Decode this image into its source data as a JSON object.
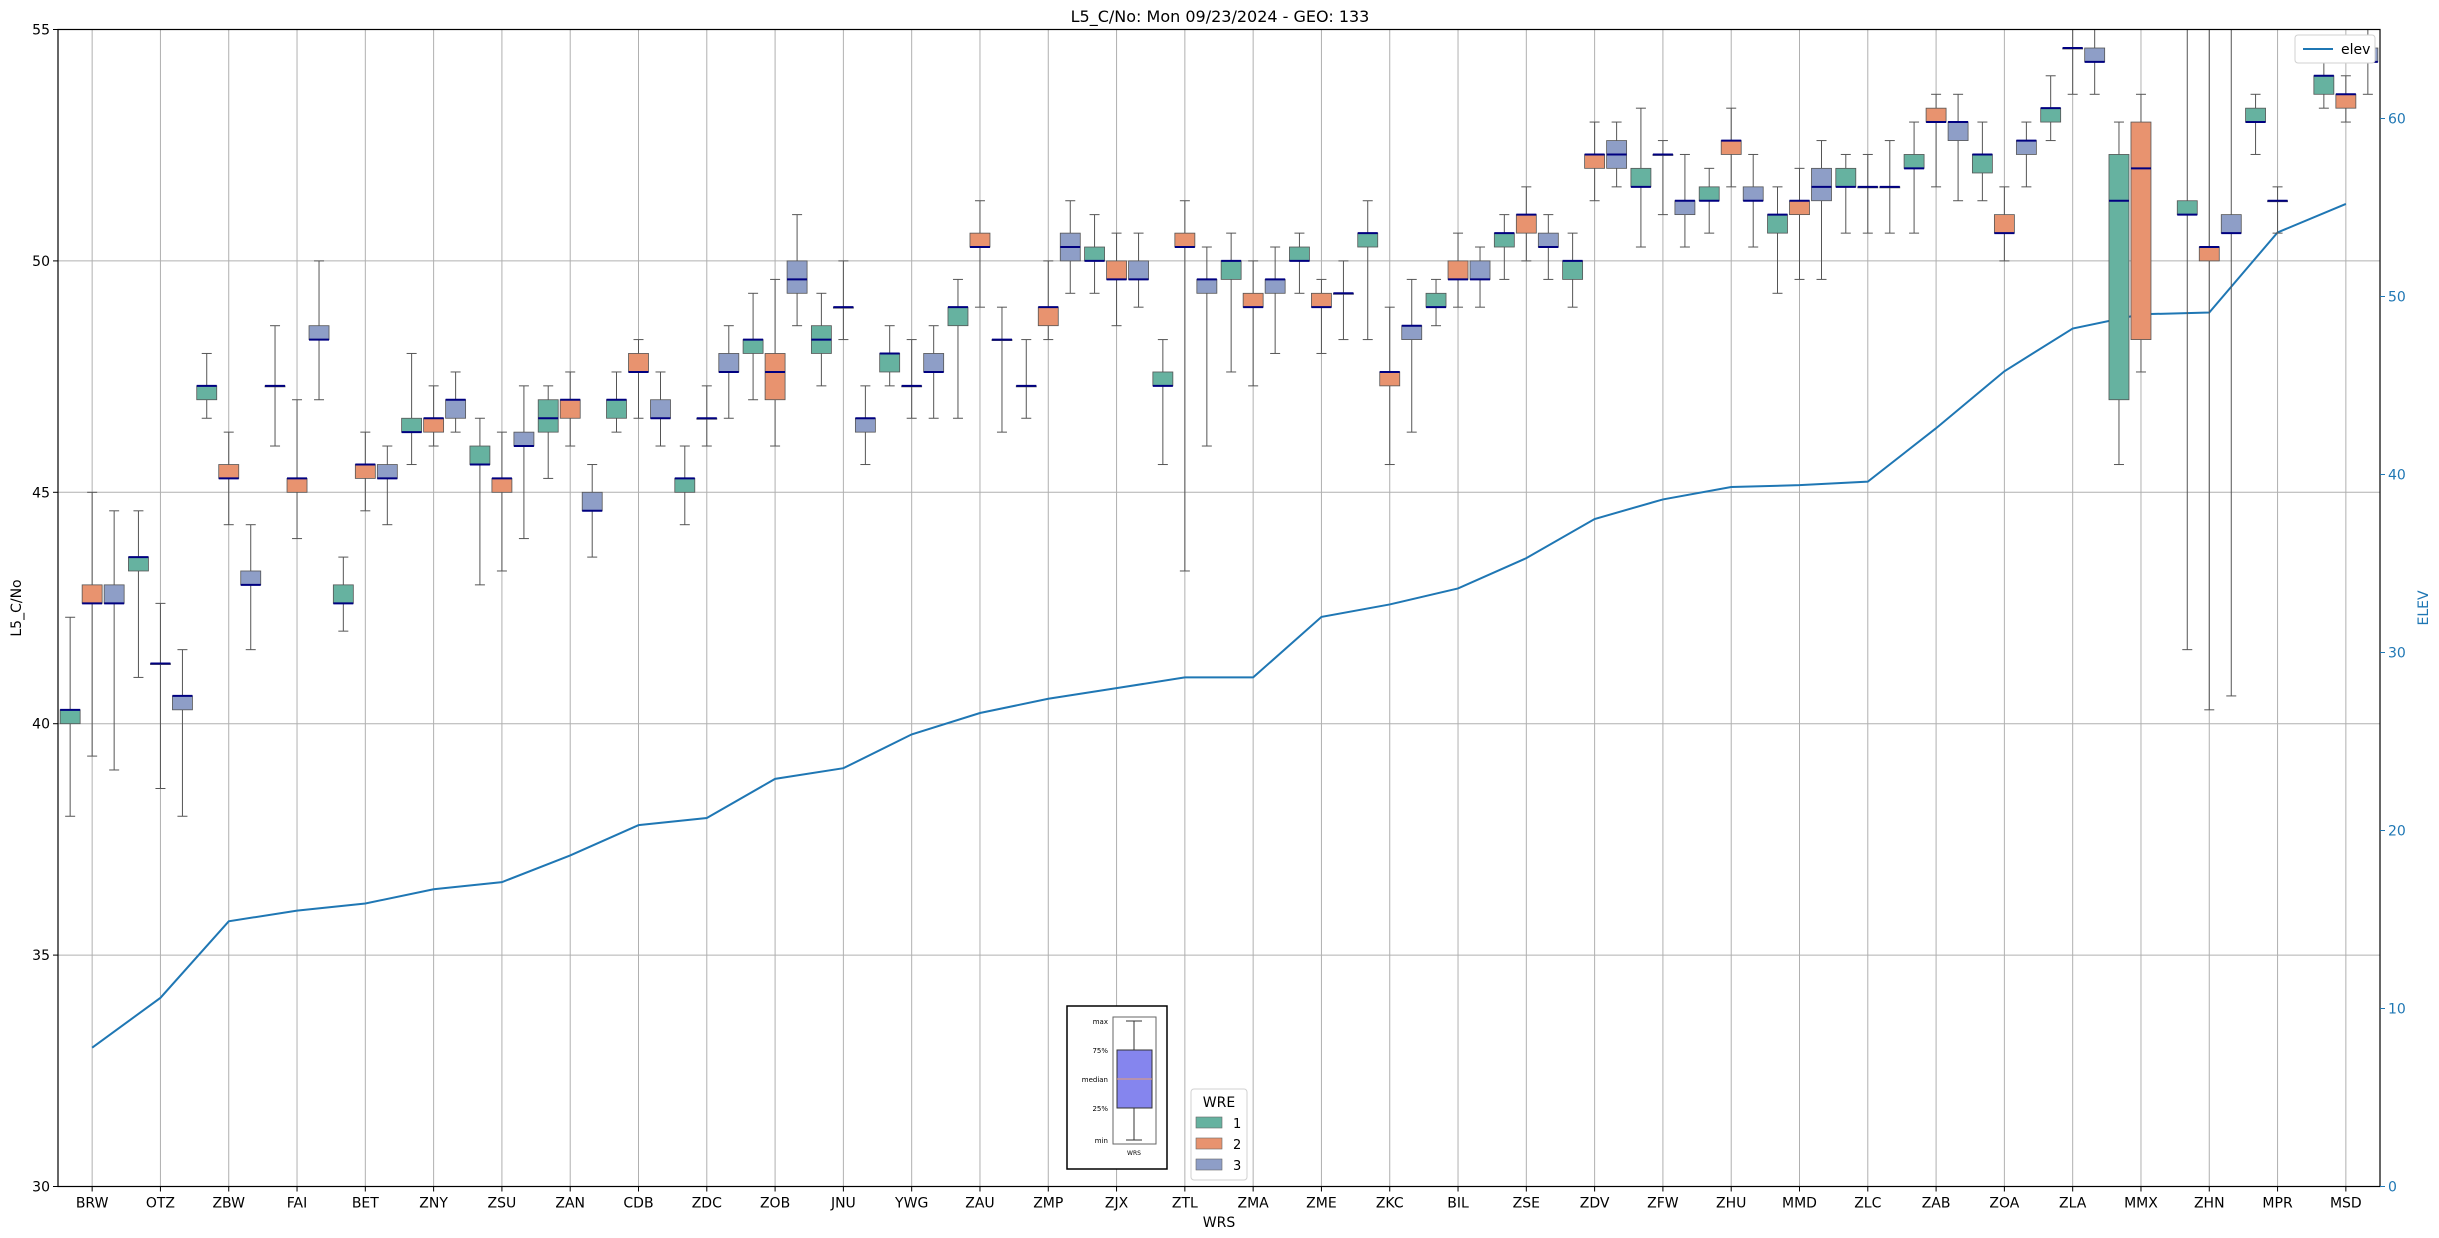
{
  "chart_data": {
    "type": "box",
    "title": "L5_C/No: Mon 09/23/2024 - GEO: 133",
    "xlabel": "WRS",
    "ylabel": "L5_C/No",
    "ylabel_right": "ELEV",
    "ylim": [
      30,
      55
    ],
    "ylim_right": [
      0,
      65
    ],
    "yticks": [
      30,
      35,
      40,
      45,
      50,
      55
    ],
    "yticks_right": [
      0,
      10,
      20,
      30,
      40,
      50,
      60
    ],
    "grid": true,
    "categories": [
      "BRW",
      "OTZ",
      "ZBW",
      "FAI",
      "BET",
      "ZNY",
      "ZSU",
      "ZAN",
      "CDB",
      "ZDC",
      "ZOB",
      "JNU",
      "YWG",
      "ZAU",
      "ZMP",
      "ZJX",
      "ZTL",
      "ZMA",
      "ZME",
      "ZKC",
      "BIL",
      "ZSE",
      "ZDV",
      "ZFW",
      "ZHU",
      "MMD",
      "ZLC",
      "ZAB",
      "ZOA",
      "ZLA",
      "MMX",
      "ZHN",
      "MPR",
      "MSD"
    ],
    "legend": {
      "title": "WRE",
      "placement": "bottom-center",
      "entries": [
        {
          "label": "1",
          "color": "#66b2a0"
        },
        {
          "label": "2",
          "color": "#e8936f"
        },
        {
          "label": "3",
          "color": "#8e9ec7"
        }
      ]
    },
    "line_legend": {
      "label": "elev",
      "placement": "top-right"
    },
    "key_box": {
      "labels": [
        "max",
        "75%",
        "median",
        "25%",
        "min"
      ],
      "caption": "WRS"
    },
    "colors": {
      "wre1": "#66b2a0",
      "wre2": "#e8936f",
      "wre3": "#8e9ec7",
      "median": "#000080",
      "elev": "#1f77b4",
      "whisker": "#555555",
      "grid": "#b0b0b0"
    },
    "series": [
      {
        "name": "1",
        "boxes": [
          [
            0,
            38.0,
            40.0,
            40.3,
            40.3,
            42.3
          ],
          [
            1,
            41.0,
            43.3,
            43.6,
            43.6,
            44.6
          ],
          [
            2,
            46.6,
            47.0,
            47.3,
            47.3,
            48.0
          ],
          [
            3,
            46.0,
            47.3,
            47.3,
            47.3,
            48.6
          ],
          [
            4,
            42.0,
            42.6,
            42.6,
            43.0,
            43.6
          ],
          [
            5,
            45.6,
            46.3,
            46.3,
            46.6,
            48.0
          ],
          [
            6,
            43.0,
            45.6,
            45.6,
            46.0,
            46.6
          ],
          [
            7,
            45.3,
            46.3,
            46.6,
            47.0,
            47.3
          ],
          [
            8,
            46.3,
            46.6,
            47.0,
            47.0,
            47.6
          ],
          [
            9,
            44.3,
            45.0,
            45.3,
            45.3,
            46.0
          ],
          [
            10,
            47.0,
            48.0,
            48.3,
            48.3,
            49.3
          ],
          [
            11,
            47.3,
            48.0,
            48.3,
            48.6,
            49.3
          ],
          [
            12,
            47.3,
            47.6,
            48.0,
            48.0,
            48.6
          ],
          [
            13,
            46.6,
            48.6,
            49.0,
            49.0,
            49.6
          ],
          [
            14,
            46.6,
            47.3,
            47.3,
            47.3,
            48.3
          ],
          [
            15,
            49.3,
            50.0,
            50.0,
            50.3,
            51.0
          ],
          [
            16,
            45.6,
            47.3,
            47.3,
            47.6,
            48.3
          ],
          [
            17,
            47.6,
            49.6,
            50.0,
            50.0,
            50.6
          ],
          [
            18,
            49.3,
            50.0,
            50.0,
            50.3,
            50.6
          ],
          [
            19,
            48.3,
            50.3,
            50.6,
            50.6,
            51.3
          ],
          [
            20,
            48.6,
            49.0,
            49.0,
            49.3,
            49.6
          ],
          [
            21,
            49.6,
            50.3,
            50.6,
            50.6,
            51.0
          ],
          [
            22,
            49.0,
            49.6,
            50.0,
            50.0,
            50.6
          ],
          [
            23,
            50.3,
            51.6,
            51.6,
            52.0,
            53.3
          ],
          [
            24,
            50.6,
            51.3,
            51.3,
            51.6,
            52.0
          ],
          [
            25,
            49.3,
            50.6,
            51.0,
            51.0,
            51.6
          ],
          [
            26,
            50.6,
            51.6,
            51.6,
            52.0,
            52.3
          ],
          [
            27,
            50.6,
            52.0,
            52.0,
            52.3,
            53.0
          ],
          [
            28,
            51.3,
            51.9,
            52.3,
            52.3,
            53.0
          ],
          [
            29,
            52.6,
            53.0,
            53.3,
            53.3,
            54.0
          ],
          [
            30,
            45.6,
            47.0,
            51.3,
            52.3,
            53.0
          ],
          [
            31,
            41.6,
            51.0,
            51.0,
            51.3,
            55.0
          ],
          [
            32,
            52.3,
            53.0,
            53.0,
            53.3,
            53.6
          ],
          [
            33,
            53.3,
            53.6,
            54.0,
            54.0,
            54.6
          ]
        ]
      },
      {
        "name": "2",
        "boxes": [
          [
            0,
            39.3,
            42.6,
            42.6,
            43.0,
            45.0
          ],
          [
            1,
            38.6,
            41.3,
            41.3,
            41.3,
            42.6
          ],
          [
            2,
            44.3,
            45.3,
            45.3,
            45.6,
            46.3
          ],
          [
            3,
            44.0,
            45.0,
            45.3,
            45.3,
            47.0
          ],
          [
            4,
            44.6,
            45.3,
            45.6,
            45.6,
            46.3
          ],
          [
            5,
            46.0,
            46.3,
            46.6,
            46.6,
            47.3
          ],
          [
            6,
            43.3,
            45.0,
            45.3,
            45.3,
            46.3
          ],
          [
            7,
            46.0,
            46.6,
            47.0,
            47.0,
            47.6
          ],
          [
            8,
            46.6,
            47.6,
            47.6,
            48.0,
            48.3
          ],
          [
            9,
            46.0,
            46.6,
            46.6,
            46.6,
            47.3
          ],
          [
            10,
            46.0,
            47.0,
            47.6,
            48.0,
            49.6
          ],
          [
            11,
            48.3,
            49.0,
            49.0,
            49.0,
            50.0
          ],
          [
            12,
            46.6,
            47.3,
            47.3,
            47.3,
            48.3
          ],
          [
            13,
            49.0,
            50.3,
            50.3,
            50.6,
            51.3
          ],
          [
            14,
            48.3,
            48.6,
            49.0,
            49.0,
            50.0
          ],
          [
            15,
            48.6,
            49.6,
            49.6,
            50.0,
            50.6
          ],
          [
            16,
            43.3,
            50.3,
            50.3,
            50.6,
            51.3
          ],
          [
            17,
            47.3,
            49.0,
            49.0,
            49.3,
            50.0
          ],
          [
            18,
            48.0,
            49.0,
            49.0,
            49.3,
            49.6
          ],
          [
            19,
            45.6,
            47.3,
            47.6,
            47.6,
            49.0
          ],
          [
            20,
            49.0,
            49.6,
            49.6,
            50.0,
            50.6
          ],
          [
            21,
            50.0,
            50.6,
            51.0,
            51.0,
            51.6
          ],
          [
            22,
            51.3,
            52.0,
            52.3,
            52.3,
            53.0
          ],
          [
            23,
            51.0,
            52.3,
            52.3,
            52.3,
            52.6
          ],
          [
            24,
            51.6,
            52.3,
            52.6,
            52.6,
            53.3
          ],
          [
            25,
            49.6,
            51.0,
            51.3,
            51.3,
            52.0
          ],
          [
            26,
            50.6,
            51.6,
            51.6,
            51.6,
            52.3
          ],
          [
            27,
            51.6,
            53.0,
            53.0,
            53.3,
            53.6
          ],
          [
            28,
            50.0,
            50.6,
            50.6,
            51.0,
            51.6
          ],
          [
            29,
            53.6,
            54.6,
            54.6,
            54.6,
            55.0
          ],
          [
            30,
            47.6,
            48.3,
            52.0,
            53.0,
            53.6
          ],
          [
            31,
            40.3,
            50.0,
            50.3,
            50.3,
            55.0
          ],
          [
            32,
            50.6,
            51.3,
            51.3,
            51.3,
            51.6
          ],
          [
            33,
            53.0,
            53.3,
            53.6,
            53.6,
            54.0
          ]
        ]
      },
      {
        "name": "3",
        "boxes": [
          [
            0,
            39.0,
            42.6,
            42.6,
            43.0,
            44.6
          ],
          [
            1,
            38.0,
            40.3,
            40.6,
            40.6,
            41.6
          ],
          [
            2,
            41.6,
            43.0,
            43.0,
            43.3,
            44.3
          ],
          [
            3,
            47.0,
            48.3,
            48.3,
            48.6,
            50.0
          ],
          [
            4,
            44.3,
            45.3,
            45.3,
            45.6,
            46.0
          ],
          [
            5,
            46.3,
            46.6,
            47.0,
            47.0,
            47.6
          ],
          [
            6,
            44.0,
            46.0,
            46.0,
            46.3,
            47.3
          ],
          [
            7,
            43.6,
            44.6,
            44.6,
            45.0,
            45.6
          ],
          [
            8,
            46.0,
            46.6,
            46.6,
            47.0,
            47.6
          ],
          [
            9,
            46.6,
            47.6,
            47.6,
            48.0,
            48.6
          ],
          [
            10,
            48.6,
            49.3,
            49.6,
            50.0,
            51.0
          ],
          [
            11,
            45.6,
            46.3,
            46.6,
            46.6,
            47.3
          ],
          [
            12,
            46.6,
            47.6,
            47.6,
            48.0,
            48.6
          ],
          [
            13,
            46.3,
            48.3,
            48.3,
            48.3,
            49.0
          ],
          [
            14,
            49.3,
            50.0,
            50.3,
            50.6,
            51.3
          ],
          [
            15,
            49.0,
            49.6,
            49.6,
            50.0,
            50.6
          ],
          [
            16,
            46.0,
            49.3,
            49.6,
            49.6,
            50.3
          ],
          [
            17,
            48.0,
            49.3,
            49.6,
            49.6,
            50.3
          ],
          [
            18,
            48.3,
            49.3,
            49.3,
            49.3,
            50.0
          ],
          [
            19,
            46.3,
            48.3,
            48.6,
            48.6,
            49.6
          ],
          [
            20,
            49.0,
            49.6,
            49.6,
            50.0,
            50.3
          ],
          [
            21,
            49.6,
            50.3,
            50.3,
            50.6,
            51.0
          ],
          [
            22,
            51.6,
            52.0,
            52.3,
            52.6,
            53.0
          ],
          [
            23,
            50.3,
            51.0,
            51.3,
            51.3,
            52.3
          ],
          [
            24,
            50.3,
            51.3,
            51.3,
            51.6,
            52.3
          ],
          [
            25,
            49.6,
            51.3,
            51.6,
            52.0,
            52.6
          ],
          [
            26,
            50.6,
            51.6,
            51.6,
            51.6,
            52.6
          ],
          [
            27,
            51.3,
            52.6,
            53.0,
            53.0,
            53.6
          ],
          [
            28,
            51.6,
            52.3,
            52.6,
            52.6,
            53.0
          ],
          [
            29,
            53.6,
            54.3,
            54.3,
            54.6,
            55.0
          ],
          [
            31,
            40.6,
            50.6,
            50.6,
            51.0,
            55.0
          ],
          [
            33,
            53.6,
            54.3,
            54.3,
            54.6,
            55.0
          ]
        ]
      },
      {
        "name": "elev",
        "type": "line",
        "axis": "right",
        "values": [
          7.8,
          10.6,
          14.9,
          15.5,
          15.9,
          16.7,
          17.1,
          18.6,
          20.3,
          20.7,
          22.9,
          23.5,
          25.4,
          26.6,
          27.4,
          28.0,
          28.6,
          28.6,
          32.0,
          32.7,
          33.6,
          35.3,
          37.5,
          38.6,
          39.3,
          39.4,
          39.6,
          42.6,
          45.8,
          48.2,
          49.0,
          49.1,
          53.6,
          55.2
        ]
      }
    ]
  }
}
